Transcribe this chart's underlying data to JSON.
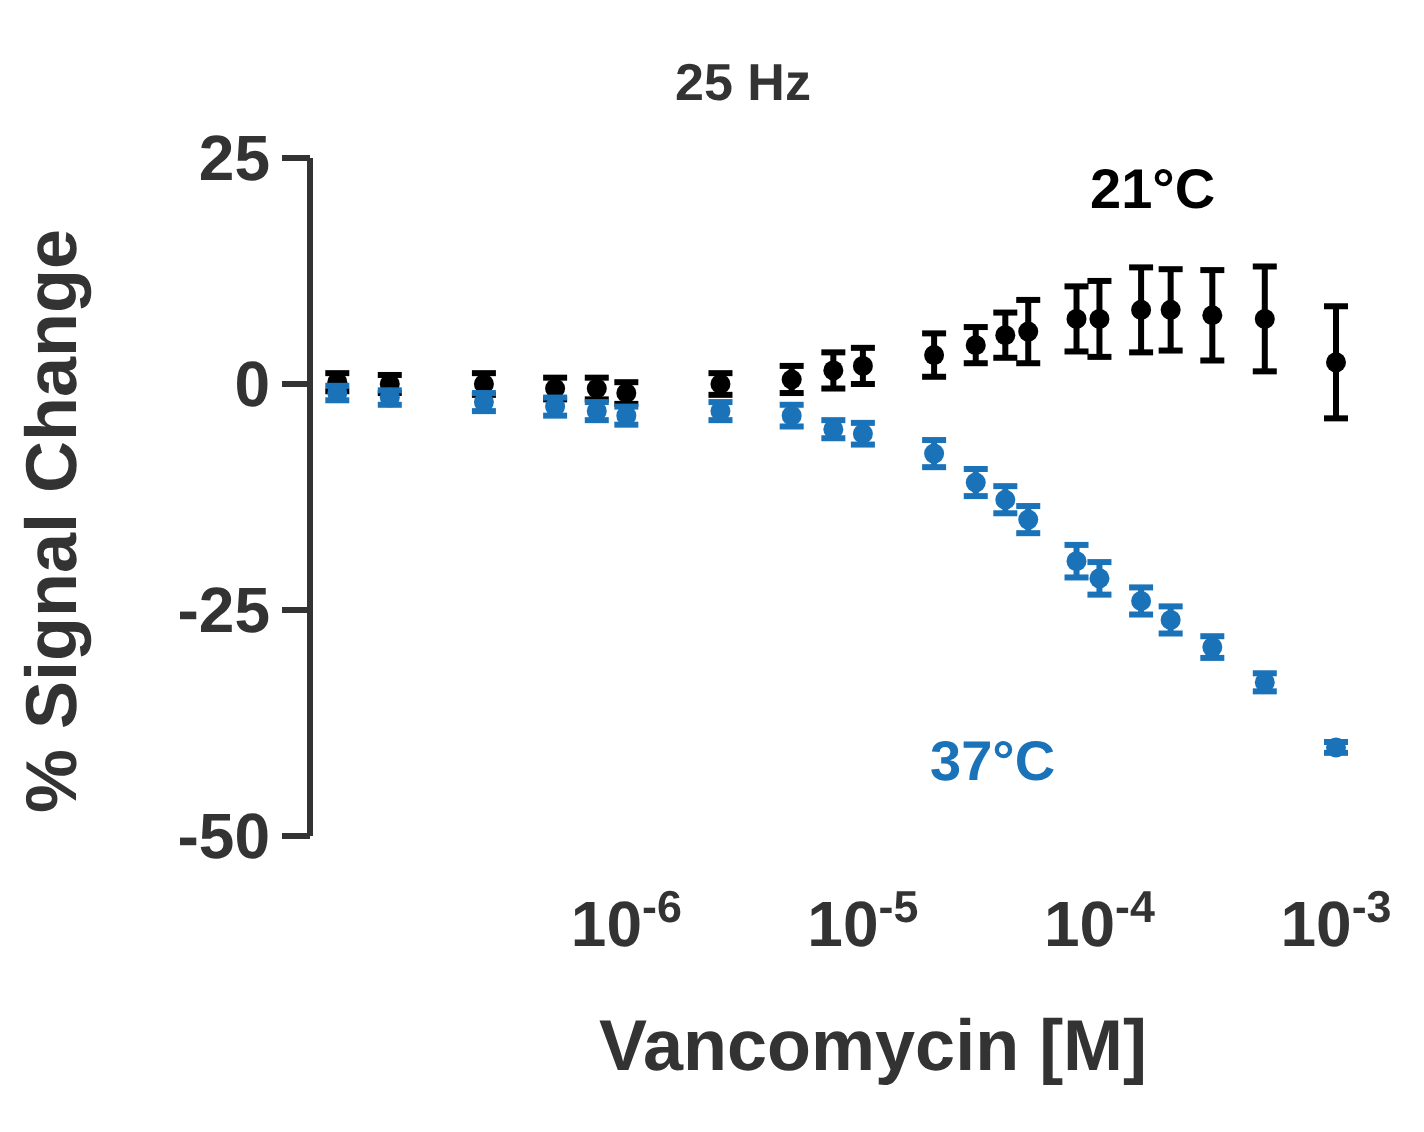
{
  "chart_data": {
    "type": "scatter",
    "title": "25 Hz",
    "xlabel": "Vancomycin [M]",
    "ylabel": "% Signal Change",
    "x": [
      6e-08,
      1e-07,
      2.5e-07,
      5e-07,
      7.5e-07,
      1e-06,
      2.5e-06,
      5e-06,
      7.5e-06,
      1e-05,
      2e-05,
      3e-05,
      4e-05,
      5e-05,
      8e-05,
      0.0001,
      0.00015,
      0.0002,
      0.0003,
      0.0005,
      0.001
    ],
    "series": [
      {
        "name": "21°C",
        "color": "#000000",
        "values": [
          0.2,
          0,
          0,
          -0.5,
          -0.5,
          -1,
          0,
          0.5,
          1.5,
          2,
          3.2,
          4.3,
          5.4,
          5.8,
          7.2,
          7.2,
          8.2,
          8.2,
          7.6,
          7.2,
          2.4
        ],
        "errors": [
          1,
          1,
          1.2,
          1.2,
          1.2,
          1.2,
          1.2,
          1.5,
          2,
          2,
          2.4,
          2,
          2.5,
          3.5,
          3.6,
          4.2,
          4.7,
          4.5,
          5,
          5.8,
          6.2
        ]
      },
      {
        "name": "37°C",
        "color": "#1a72b8",
        "values": [
          -1,
          -1.5,
          -2,
          -2.5,
          -3,
          -3.5,
          -3,
          -3.5,
          -5,
          -5.5,
          -7.7,
          -10.9,
          -12.8,
          -15,
          -19.6,
          -21.5,
          -24,
          -26.1,
          -29.1,
          -33,
          -40.2
        ],
        "errors": [
          0.8,
          0.8,
          1,
          1,
          1,
          1,
          1,
          1.2,
          1,
          1.2,
          1.5,
          1.5,
          1.5,
          1.5,
          1.8,
          1.8,
          1.5,
          1.5,
          1.2,
          1,
          0.6
        ]
      }
    ],
    "marker": "circle",
    "log": "x",
    "xlim": [
      4.6e-08,
      0.001
    ],
    "xticks": [
      {
        "value": 1e-06,
        "label": "10$^{-6}$"
      },
      {
        "value": 1e-05,
        "label": "10$^{-5}$"
      },
      {
        "value": 0.0001,
        "label": "10$^{-4}$"
      },
      {
        "value": 0.001,
        "label": "10$^{-3}$"
      }
    ],
    "ylim": [
      -50,
      25
    ],
    "yticks": [
      -50,
      -25,
      0,
      25
    ]
  }
}
